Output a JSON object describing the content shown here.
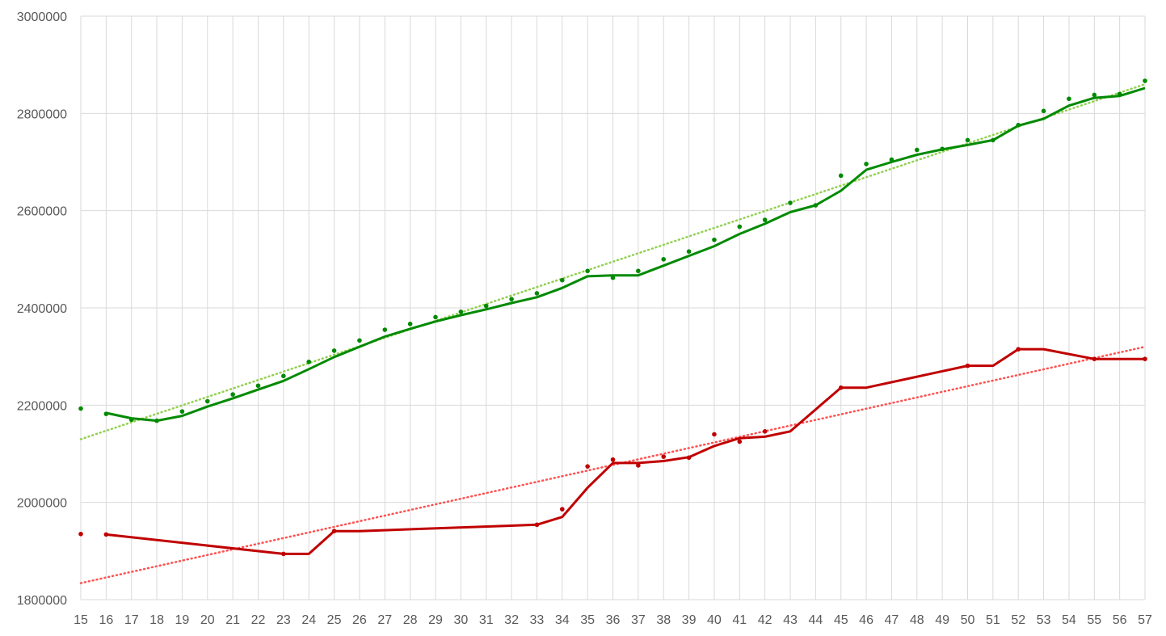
{
  "chart_data": {
    "type": "line",
    "title": "",
    "xlabel": "",
    "ylabel": "",
    "x": [
      15,
      16,
      17,
      18,
      19,
      20,
      21,
      22,
      23,
      24,
      25,
      26,
      27,
      28,
      29,
      30,
      31,
      32,
      33,
      34,
      35,
      36,
      37,
      38,
      39,
      40,
      41,
      42,
      43,
      44,
      45,
      46,
      47,
      48,
      49,
      50,
      51,
      52,
      53,
      54,
      55,
      56,
      57
    ],
    "xlim": [
      15,
      57
    ],
    "ylim": [
      1800000,
      3000000
    ],
    "y_ticks": [
      1800000,
      2000000,
      2200000,
      2400000,
      2600000,
      2800000,
      3000000
    ],
    "grid": true,
    "legend": "none",
    "series": [
      {
        "color": "#008a00",
        "points": [
          [
            15,
            2193000
          ],
          [
            16,
            2182000
          ],
          [
            17,
            2170000
          ],
          [
            18,
            2168000
          ],
          [
            19,
            2187000
          ],
          [
            20,
            2208000
          ],
          [
            21,
            2222000
          ],
          [
            22,
            2240000
          ],
          [
            23,
            2260000
          ],
          [
            24,
            2289000
          ],
          [
            25,
            2312000
          ],
          [
            26,
            2333000
          ],
          [
            27,
            2355000
          ],
          [
            28,
            2367000
          ],
          [
            29,
            2381000
          ],
          [
            30,
            2392000
          ],
          [
            31,
            2404000
          ],
          [
            32,
            2418000
          ],
          [
            33,
            2430000
          ],
          [
            34,
            2457000
          ],
          [
            35,
            2476000
          ],
          [
            36,
            2462000
          ],
          [
            37,
            2476000
          ],
          [
            38,
            2500000
          ],
          [
            39,
            2516000
          ],
          [
            40,
            2540000
          ],
          [
            41,
            2567000
          ],
          [
            42,
            2581000
          ],
          [
            43,
            2616000
          ],
          [
            44,
            2611000
          ],
          [
            45,
            2672000
          ],
          [
            46,
            2696000
          ],
          [
            47,
            2705000
          ],
          [
            48,
            2725000
          ],
          [
            49,
            2727000
          ],
          [
            50,
            2745000
          ],
          [
            51,
            2745000
          ],
          [
            52,
            2776000
          ],
          [
            53,
            2805000
          ],
          [
            54,
            2830000
          ],
          [
            55,
            2838000
          ],
          [
            56,
            2840000
          ],
          [
            57,
            2867000
          ]
        ],
        "moving_average": [
          [
            16,
            2184000
          ],
          [
            17,
            2173000
          ],
          [
            18,
            2168000
          ],
          [
            19,
            2178000
          ],
          [
            20,
            2197000
          ],
          [
            21,
            2214000
          ],
          [
            22,
            2232000
          ],
          [
            23,
            2250000
          ],
          [
            24,
            2274000
          ],
          [
            25,
            2299000
          ],
          [
            26,
            2320000
          ],
          [
            27,
            2341000
          ],
          [
            28,
            2357000
          ],
          [
            29,
            2372000
          ],
          [
            30,
            2385000
          ],
          [
            31,
            2397000
          ],
          [
            32,
            2410000
          ],
          [
            33,
            2422000
          ],
          [
            34,
            2441000
          ],
          [
            35,
            2465000
          ],
          [
            36,
            2467000
          ],
          [
            37,
            2467000
          ],
          [
            38,
            2487000
          ],
          [
            39,
            2507000
          ],
          [
            40,
            2527000
          ],
          [
            41,
            2552000
          ],
          [
            42,
            2573000
          ],
          [
            43,
            2597000
          ],
          [
            44,
            2611000
          ],
          [
            45,
            2641000
          ],
          [
            46,
            2684000
          ],
          [
            47,
            2700000
          ],
          [
            48,
            2715000
          ],
          [
            49,
            2726000
          ],
          [
            50,
            2735000
          ],
          [
            51,
            2745000
          ],
          [
            52,
            2775000
          ],
          [
            53,
            2789000
          ],
          [
            54,
            2816000
          ],
          [
            55,
            2832000
          ],
          [
            56,
            2836000
          ],
          [
            57,
            2852000
          ]
        ],
        "trend_color": "#92d050",
        "trend": [
          [
            15,
            2130000
          ],
          [
            57,
            2860000
          ]
        ]
      },
      {
        "color": "#c00000",
        "points": [
          [
            15,
            1935000
          ],
          [
            16,
            1934000
          ],
          [
            23,
            1894000
          ],
          [
            25,
            1941000
          ],
          [
            33,
            1954000
          ],
          [
            34,
            1986000
          ],
          [
            35,
            2074000
          ],
          [
            36,
            2088000
          ],
          [
            37,
            2076000
          ],
          [
            38,
            2094000
          ],
          [
            39,
            2092000
          ],
          [
            40,
            2140000
          ],
          [
            41,
            2125000
          ],
          [
            42,
            2146000
          ],
          [
            45,
            2236000
          ],
          [
            50,
            2281000
          ],
          [
            52,
            2315000
          ],
          [
            55,
            2295000
          ],
          [
            57,
            2295000
          ]
        ],
        "moving_average": [
          [
            16,
            1934000
          ],
          [
            23,
            1894000
          ],
          [
            24,
            1894000
          ],
          [
            25,
            1941000
          ],
          [
            26,
            1941000
          ],
          [
            33,
            1954000
          ],
          [
            34,
            1970000
          ],
          [
            35,
            2030000
          ],
          [
            36,
            2081000
          ],
          [
            37,
            2081000
          ],
          [
            38,
            2085000
          ],
          [
            39,
            2093000
          ],
          [
            40,
            2116000
          ],
          [
            41,
            2132000
          ],
          [
            42,
            2135000
          ],
          [
            43,
            2146000
          ],
          [
            44,
            2191000
          ],
          [
            45,
            2236000
          ],
          [
            46,
            2236000
          ],
          [
            50,
            2281000
          ],
          [
            51,
            2281000
          ],
          [
            52,
            2315000
          ],
          [
            53,
            2315000
          ],
          [
            55,
            2295000
          ],
          [
            56,
            2295000
          ],
          [
            57,
            2295000
          ]
        ],
        "trend_color": "#ff5050",
        "trend": [
          [
            15,
            1834000
          ],
          [
            57,
            2320000
          ]
        ]
      }
    ]
  }
}
